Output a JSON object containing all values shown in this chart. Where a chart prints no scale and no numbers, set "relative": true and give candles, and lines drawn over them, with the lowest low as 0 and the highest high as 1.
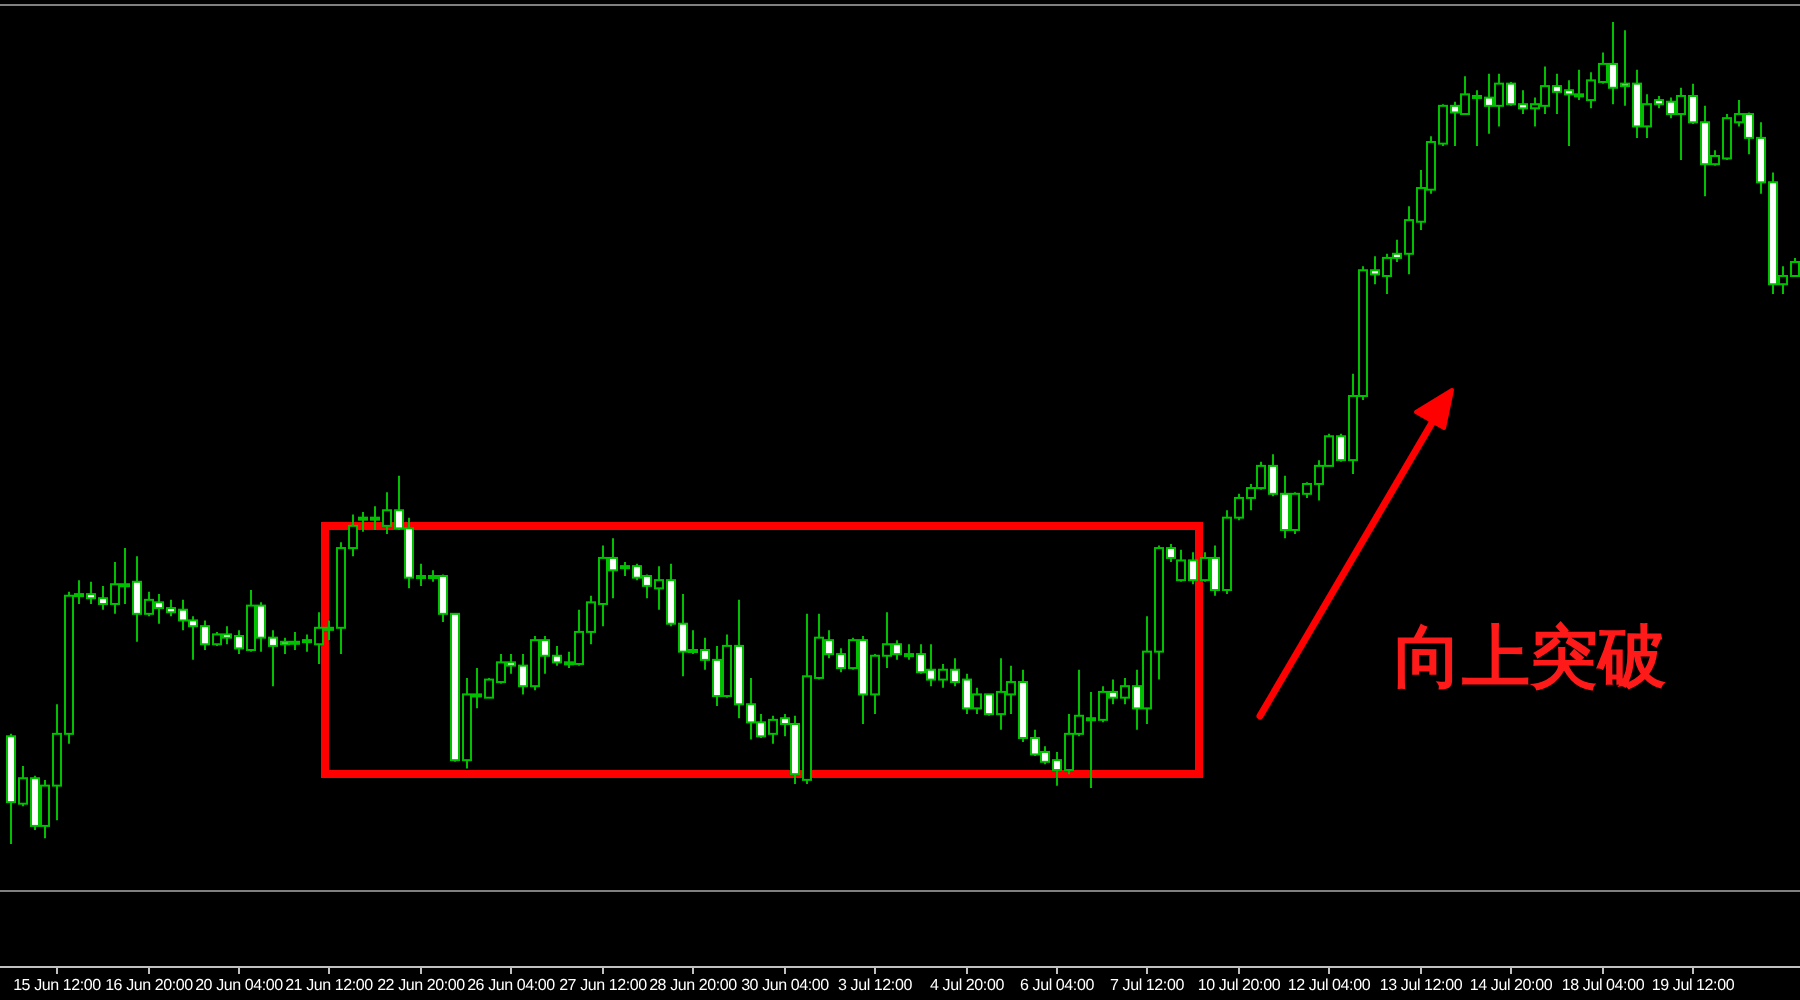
{
  "chart_data": {
    "type": "candlestick",
    "relative": true,
    "color": "#00c000",
    "annotations": [
      "向上突破"
    ],
    "categories": [
      null,
      null,
      null,
      null,
      "15 Jun 12:00",
      null,
      null,
      null,
      null,
      null,
      null,
      null,
      "16 Jun 20:00",
      null,
      null,
      null,
      null,
      null,
      null,
      null,
      "20 Jun 04:00",
      null,
      null,
      null,
      null,
      null,
      null,
      null,
      "21 Jun 12:00",
      null,
      null,
      null,
      null,
      null,
      null,
      null,
      "22 Jun 20:00",
      null,
      null,
      null,
      null,
      null,
      null,
      null,
      "26 Jun 04:00",
      null,
      null,
      null,
      null,
      null,
      null,
      null,
      "27 Jun 12:00",
      null,
      null,
      null,
      null,
      null,
      null,
      null,
      "28 Jun 20:00",
      null,
      null,
      null,
      null,
      null,
      null,
      null,
      "30 Jun 04:00",
      null,
      null,
      null,
      null,
      null,
      null,
      null,
      "3 Jul 12:00",
      null,
      null,
      null,
      null,
      null,
      null,
      null,
      "4 Jul 20:00",
      null,
      null,
      null,
      null,
      null,
      null,
      null,
      "6 Jul 04:00",
      null,
      null,
      null,
      null,
      null,
      null,
      null,
      "7 Jul 12:00",
      null,
      null,
      null,
      null,
      null,
      null,
      null,
      "10 Jul 20:00",
      null,
      null,
      null,
      null,
      null,
      null,
      null,
      "12 Jul 04:00",
      null,
      null,
      null,
      null,
      null,
      null,
      null,
      "13 Jul 12:00",
      null,
      null,
      null,
      null,
      null,
      null,
      null,
      "14 Jul 20:00",
      null,
      null,
      null,
      null,
      null,
      null,
      null,
      "18 Jul 04:00",
      null,
      null,
      null,
      null,
      null,
      null,
      null,
      "19 Jul 12:00",
      null,
      null,
      null,
      null,
      null,
      null,
      null,
      null,
      null
    ],
    "ohlc": [
      [
        0.131,
        0.134,
        0,
        0.051
      ],
      [
        0.049,
        0.095,
        0.046,
        0.08
      ],
      [
        0.08,
        0.083,
        0.017,
        0.022
      ],
      [
        0.022,
        0.078,
        0.007,
        0.071
      ],
      [
        0.071,
        0.17,
        0.029,
        0.134
      ],
      [
        0.134,
        0.307,
        0.122,
        0.302
      ],
      [
        0.302,
        0.321,
        0.292,
        0.304
      ],
      [
        0.304,
        0.319,
        0.292,
        0.299
      ],
      [
        0.299,
        0.314,
        0.285,
        0.292
      ],
      [
        0.292,
        0.343,
        0.28,
        0.316
      ],
      [
        0.316,
        0.36,
        0.292,
        0.316
      ],
      [
        0.319,
        0.35,
        0.246,
        0.28
      ],
      [
        0.28,
        0.307,
        0.277,
        0.297
      ],
      [
        0.294,
        0.304,
        0.268,
        0.287
      ],
      [
        0.287,
        0.297,
        0.277,
        0.282
      ],
      [
        0.285,
        0.297,
        0.26,
        0.272
      ],
      [
        0.272,
        0.277,
        0.224,
        0.265
      ],
      [
        0.265,
        0.272,
        0.236,
        0.243
      ],
      [
        0.243,
        0.258,
        0.241,
        0.255
      ],
      [
        0.255,
        0.265,
        0.243,
        0.251
      ],
      [
        0.253,
        0.26,
        0.231,
        0.238
      ],
      [
        0.236,
        0.309,
        0.234,
        0.29
      ],
      [
        0.29,
        0.294,
        0.234,
        0.251
      ],
      [
        0.251,
        0.26,
        0.192,
        0.241
      ],
      [
        0.246,
        0.251,
        0.231,
        0.243
      ],
      [
        0.246,
        0.258,
        0.236,
        0.246
      ],
      [
        0.246,
        0.255,
        0.234,
        0.248
      ],
      [
        0.243,
        0.282,
        0.219,
        0.263
      ],
      [
        0.263,
        0.272,
        0.248,
        0.263
      ],
      [
        0.263,
        0.367,
        0.231,
        0.36
      ],
      [
        0.36,
        0.401,
        0.35,
        0.387
      ],
      [
        0.397,
        0.404,
        0.38,
        0.397
      ],
      [
        0.397,
        0.411,
        0.382,
        0.397
      ],
      [
        0.387,
        0.428,
        0.377,
        0.406
      ],
      [
        0.406,
        0.448,
        0.382,
        0.384
      ],
      [
        0.384,
        0.397,
        0.311,
        0.324
      ],
      [
        0.326,
        0.341,
        0.314,
        0.326
      ],
      [
        0.326,
        0.333,
        0.319,
        0.326
      ],
      [
        0.326,
        0.328,
        0.27,
        0.28
      ],
      [
        0.28,
        0.28,
        0.1,
        0.102
      ],
      [
        0.102,
        0.202,
        0.092,
        0.182
      ],
      [
        0.182,
        0.214,
        0.165,
        0.182
      ],
      [
        0.178,
        0.202,
        0.178,
        0.2
      ],
      [
        0.197,
        0.231,
        0.195,
        0.221
      ],
      [
        0.221,
        0.231,
        0.207,
        0.217
      ],
      [
        0.217,
        0.231,
        0.182,
        0.192
      ],
      [
        0.192,
        0.253,
        0.187,
        0.248
      ],
      [
        0.248,
        0.253,
        0.207,
        0.229
      ],
      [
        0.229,
        0.241,
        0.217,
        0.221
      ],
      [
        0.221,
        0.234,
        0.214,
        0.221
      ],
      [
        0.219,
        0.285,
        0.217,
        0.258
      ],
      [
        0.258,
        0.302,
        0.243,
        0.294
      ],
      [
        0.292,
        0.363,
        0.265,
        0.348
      ],
      [
        0.348,
        0.372,
        0.299,
        0.333
      ],
      [
        0.338,
        0.343,
        0.326,
        0.338
      ],
      [
        0.338,
        0.341,
        0.321,
        0.324
      ],
      [
        0.326,
        0.328,
        0.299,
        0.314
      ],
      [
        0.311,
        0.338,
        0.285,
        0.321
      ],
      [
        0.321,
        0.341,
        0.265,
        0.268
      ],
      [
        0.268,
        0.304,
        0.204,
        0.234
      ],
      [
        0.236,
        0.26,
        0.231,
        0.236
      ],
      [
        0.236,
        0.251,
        0.212,
        0.224
      ],
      [
        0.224,
        0.241,
        0.168,
        0.18
      ],
      [
        0.18,
        0.255,
        0.178,
        0.241
      ],
      [
        0.241,
        0.297,
        0.153,
        0.17
      ],
      [
        0.17,
        0.202,
        0.127,
        0.148
      ],
      [
        0.148,
        0.158,
        0.129,
        0.131
      ],
      [
        0.134,
        0.156,
        0.122,
        0.151
      ],
      [
        0.153,
        0.158,
        0.131,
        0.146
      ],
      [
        0.146,
        0.156,
        0.073,
        0.085
      ],
      [
        0.078,
        0.28,
        0.073,
        0.204
      ],
      [
        0.202,
        0.28,
        0.2,
        0.251
      ],
      [
        0.248,
        0.26,
        0.226,
        0.231
      ],
      [
        0.231,
        0.238,
        0.209,
        0.214
      ],
      [
        0.214,
        0.251,
        0.212,
        0.248
      ],
      [
        0.248,
        0.253,
        0.146,
        0.182
      ],
      [
        0.182,
        0.231,
        0.158,
        0.229
      ],
      [
        0.229,
        0.282,
        0.214,
        0.243
      ],
      [
        0.243,
        0.248,
        0.224,
        0.231
      ],
      [
        0.231,
        0.243,
        0.224,
        0.231
      ],
      [
        0.231,
        0.243,
        0.207,
        0.209
      ],
      [
        0.212,
        0.243,
        0.192,
        0.2
      ],
      [
        0.2,
        0.219,
        0.19,
        0.212
      ],
      [
        0.212,
        0.226,
        0.192,
        0.197
      ],
      [
        0.2,
        0.207,
        0.158,
        0.165
      ],
      [
        0.165,
        0.19,
        0.158,
        0.182
      ],
      [
        0.182,
        0.182,
        0.156,
        0.158
      ],
      [
        0.158,
        0.226,
        0.139,
        0.185
      ],
      [
        0.182,
        0.217,
        0.158,
        0.197
      ],
      [
        0.197,
        0.212,
        0.124,
        0.129
      ],
      [
        0.129,
        0.139,
        0.107,
        0.109
      ],
      [
        0.112,
        0.119,
        0.097,
        0.1
      ],
      [
        0.102,
        0.112,
        0.071,
        0.09
      ],
      [
        0.09,
        0.158,
        0.085,
        0.134
      ],
      [
        0.134,
        0.212,
        0.131,
        0.156
      ],
      [
        0.153,
        0.185,
        0.068,
        0.153
      ],
      [
        0.151,
        0.192,
        0.148,
        0.185
      ],
      [
        0.185,
        0.2,
        0.17,
        0.178
      ],
      [
        0.178,
        0.202,
        0.17,
        0.192
      ],
      [
        0.192,
        0.212,
        0.139,
        0.165
      ],
      [
        0.165,
        0.277,
        0.146,
        0.234
      ],
      [
        0.234,
        0.363,
        0.2,
        0.36
      ],
      [
        0.36,
        0.365,
        0.343,
        0.348
      ],
      [
        0.321,
        0.358,
        0.319,
        0.345
      ],
      [
        0.345,
        0.355,
        0.316,
        0.321
      ],
      [
        0.321,
        0.355,
        0.319,
        0.348
      ],
      [
        0.348,
        0.363,
        0.302,
        0.309
      ],
      [
        0.309,
        0.406,
        0.304,
        0.397
      ],
      [
        0.397,
        0.426,
        0.394,
        0.421
      ],
      [
        0.421,
        0.438,
        0.406,
        0.433
      ],
      [
        0.433,
        0.465,
        0.431,
        0.46
      ],
      [
        0.46,
        0.474,
        0.423,
        0.426
      ],
      [
        0.426,
        0.448,
        0.372,
        0.382
      ],
      [
        0.382,
        0.428,
        0.377,
        0.426
      ],
      [
        0.426,
        0.44,
        0.421,
        0.438
      ],
      [
        0.438,
        0.467,
        0.418,
        0.46
      ],
      [
        0.46,
        0.499,
        0.46,
        0.496
      ],
      [
        0.496,
        0.499,
        0.465,
        0.467
      ],
      [
        0.467,
        0.572,
        0.45,
        0.545
      ],
      [
        0.545,
        0.703,
        0.54,
        0.698
      ],
      [
        0.698,
        0.715,
        0.681,
        0.693
      ],
      [
        0.691,
        0.718,
        0.669,
        0.713
      ],
      [
        0.718,
        0.735,
        0.708,
        0.713
      ],
      [
        0.718,
        0.776,
        0.693,
        0.759
      ],
      [
        0.757,
        0.82,
        0.747,
        0.798
      ],
      [
        0.796,
        0.861,
        0.791,
        0.854
      ],
      [
        0.852,
        0.9,
        0.849,
        0.898
      ],
      [
        0.898,
        0.903,
        0.849,
        0.89
      ],
      [
        0.888,
        0.934,
        0.888,
        0.912
      ],
      [
        0.91,
        0.917,
        0.849,
        0.91
      ],
      [
        0.908,
        0.937,
        0.864,
        0.898
      ],
      [
        0.898,
        0.937,
        0.873,
        0.925
      ],
      [
        0.925,
        0.927,
        0.898,
        0.9
      ],
      [
        0.9,
        0.917,
        0.888,
        0.895
      ],
      [
        0.895,
        0.908,
        0.873,
        0.9
      ],
      [
        0.898,
        0.946,
        0.888,
        0.922
      ],
      [
        0.922,
        0.937,
        0.888,
        0.915
      ],
      [
        0.917,
        0.929,
        0.849,
        0.912
      ],
      [
        0.912,
        0.942,
        0.905,
        0.912
      ],
      [
        0.905,
        0.939,
        0.895,
        0.929
      ],
      [
        0.927,
        0.963,
        0.925,
        0.949
      ],
      [
        0.949,
        1,
        0.9,
        0.92
      ],
      [
        0.925,
        0.99,
        0.898,
        0.922
      ],
      [
        0.925,
        0.942,
        0.859,
        0.873
      ],
      [
        0.873,
        0.912,
        0.859,
        0.9
      ],
      [
        0.905,
        0.91,
        0.895,
        0.9
      ],
      [
        0.903,
        0.908,
        0.883,
        0.888
      ],
      [
        0.888,
        0.92,
        0.832,
        0.91
      ],
      [
        0.91,
        0.925,
        0.876,
        0.878
      ],
      [
        0.878,
        0.898,
        0.788,
        0.827
      ],
      [
        0.827,
        0.844,
        0.825,
        0.837
      ],
      [
        0.834,
        0.888,
        0.832,
        0.883
      ],
      [
        0.878,
        0.905,
        0.873,
        0.888
      ],
      [
        0.888,
        0.89,
        0.839,
        0.859
      ],
      [
        0.859,
        0.878,
        0.791,
        0.805
      ],
      [
        0.805,
        0.817,
        0.669,
        0.681
      ],
      [
        0.681,
        0.703,
        0.669,
        0.691
      ],
      [
        0.691,
        0.713,
        0.691,
        0.708
      ]
    ]
  }
}
